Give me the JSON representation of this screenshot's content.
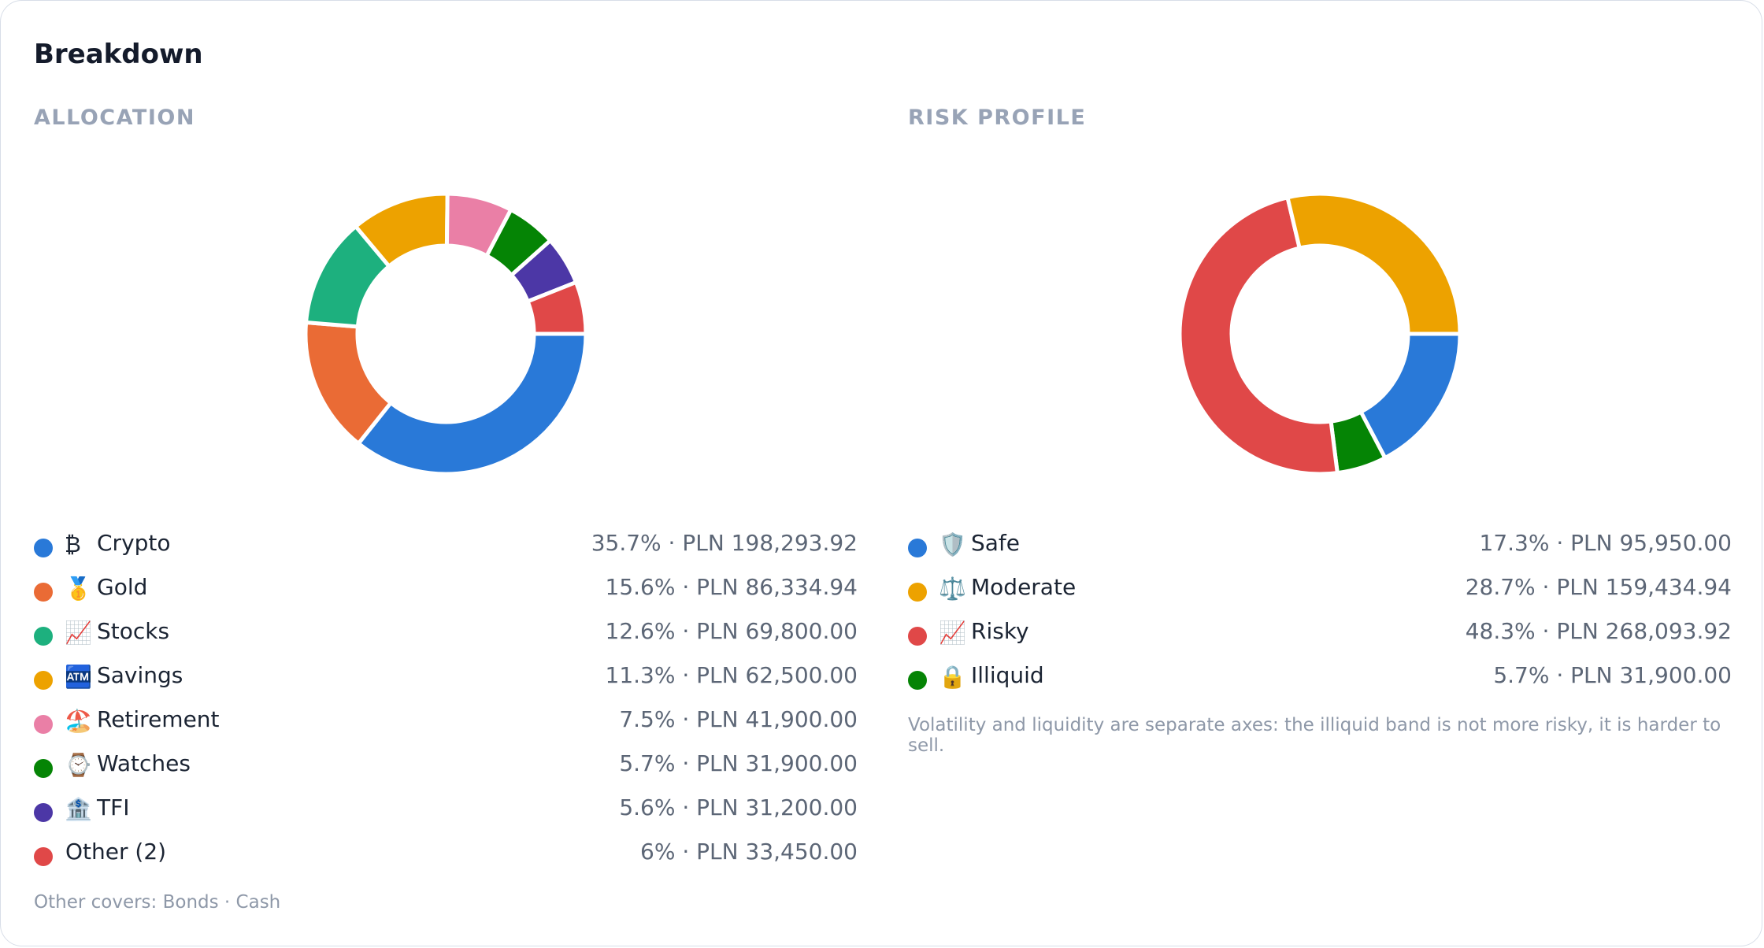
{
  "card": {
    "title": "Breakdown"
  },
  "allocation": {
    "section_label": "ALLOCATION",
    "chart_data": {
      "type": "pie",
      "categories": [
        "Crypto",
        "Gold",
        "Stocks",
        "Savings",
        "Retirement",
        "Watches",
        "TFI",
        "Other (2)"
      ],
      "values": [
        35.7,
        15.6,
        12.6,
        11.3,
        7.5,
        5.7,
        5.6,
        6
      ],
      "colors": [
        "#2979d8",
        "#ea6b35",
        "#1db07e",
        "#eda200",
        "#ea7fa6",
        "#058405",
        "#4c37a6",
        "#e04848"
      ],
      "donut": true
    },
    "items": [
      {
        "icon": "₿",
        "label": "Crypto",
        "value": "35.7% · PLN 198,293.92",
        "color": "#2979d8"
      },
      {
        "icon": "🥇",
        "label": "Gold",
        "value": "15.6% · PLN 86,334.94",
        "color": "#ea6b35"
      },
      {
        "icon": "📈",
        "label": "Stocks",
        "value": "12.6% · PLN 69,800.00",
        "color": "#1db07e"
      },
      {
        "icon": "🏧",
        "label": "Savings",
        "value": "11.3% · PLN 62,500.00",
        "color": "#eda200"
      },
      {
        "icon": "🏖️",
        "label": "Retirement",
        "value": "7.5% · PLN 41,900.00",
        "color": "#ea7fa6"
      },
      {
        "icon": "⌚",
        "label": "Watches",
        "value": "5.7% · PLN 31,900.00",
        "color": "#058405"
      },
      {
        "icon": "🏦",
        "label": "TFI",
        "value": "5.6% · PLN 31,200.00",
        "color": "#4c37a6"
      },
      {
        "icon": "",
        "label": "Other (2)",
        "value": "6% · PLN 33,450.00",
        "color": "#e04848"
      }
    ],
    "note": "Other covers: Bonds · Cash"
  },
  "risk_profile": {
    "section_label": "RISK PROFILE",
    "chart_data": {
      "type": "pie",
      "categories": [
        "Safe",
        "Illiquid",
        "Risky",
        "Moderate"
      ],
      "values": [
        17.3,
        5.7,
        48.3,
        28.7
      ],
      "colors": [
        "#2979d8",
        "#058405",
        "#e04848",
        "#eda200"
      ],
      "donut": true
    },
    "items": [
      {
        "icon": "🛡️",
        "label": "Safe",
        "value": "17.3% · PLN 95,950.00",
        "color": "#2979d8"
      },
      {
        "icon": "⚖️",
        "label": "Moderate",
        "value": "28.7% · PLN 159,434.94",
        "color": "#eda200"
      },
      {
        "icon": "📈",
        "label": "Risky",
        "value": "48.3% · PLN 268,093.92",
        "color": "#e04848"
      },
      {
        "icon": "🔒",
        "label": "Illiquid",
        "value": "5.7% · PLN 31,900.00",
        "color": "#058405"
      }
    ],
    "note": "Volatility and liquidity are separate axes: the illiquid band is not more risky, it is harder to sell."
  }
}
